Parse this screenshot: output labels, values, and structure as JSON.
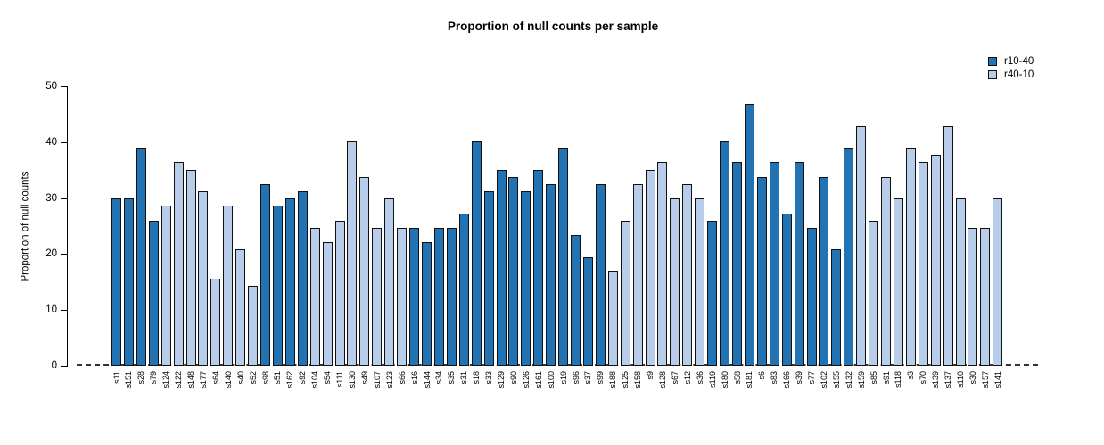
{
  "chart_data": {
    "type": "bar",
    "title": "Proportion of null counts per sample",
    "xlabel": "",
    "ylabel": "Proportion of null counts",
    "ylim": [
      0,
      50
    ],
    "yticks": [
      0,
      10,
      20,
      30,
      40,
      50
    ],
    "grid": false,
    "legend_position": "top-right",
    "zero_baseline_style": "dashed",
    "legend": [
      {
        "label": "r10-40",
        "color": "#2173b3"
      },
      {
        "label": "r40-10",
        "color": "#b8cde9"
      }
    ],
    "series_colors": {
      "r10-40": "#2173b3",
      "r40-10": "#b8cde9"
    },
    "bar_border_color": "#111111",
    "categories": [
      "s11",
      "s151",
      "s28",
      "s79",
      "s124",
      "s122",
      "s148",
      "s177",
      "s64",
      "s140",
      "s40",
      "s52",
      "s98",
      "s51",
      "s162",
      "s92",
      "s104",
      "s54",
      "s111",
      "s130",
      "s49",
      "s107",
      "s123",
      "s66",
      "s16",
      "s144",
      "s34",
      "s35",
      "s31",
      "s18",
      "s33",
      "s129",
      "s90",
      "s126",
      "s161",
      "s100",
      "s19",
      "s96",
      "s37",
      "s99",
      "s188",
      "s125",
      "s158",
      "s9",
      "s128",
      "s67",
      "s12",
      "s36",
      "s119",
      "s180",
      "s58",
      "s181",
      "s6",
      "s83",
      "s166",
      "s39",
      "s77",
      "s102",
      "s155",
      "s132",
      "s159",
      "s85",
      "s91",
      "s118",
      "s3",
      "s70",
      "s139",
      "s137",
      "s110",
      "s30",
      "s157",
      "s141"
    ],
    "values": [
      29.9,
      29.9,
      39.0,
      26.0,
      28.6,
      36.4,
      35.1,
      31.2,
      15.6,
      28.6,
      20.8,
      14.3,
      32.5,
      28.6,
      29.9,
      31.2,
      24.7,
      22.1,
      26.0,
      40.3,
      33.8,
      24.7,
      29.9,
      24.7,
      24.7,
      22.1,
      24.7,
      24.7,
      27.3,
      40.3,
      31.2,
      35.1,
      33.8,
      31.2,
      35.1,
      32.5,
      39.0,
      23.4,
      19.5,
      32.5,
      16.9,
      26.0,
      32.5,
      35.1,
      36.4,
      29.9,
      32.5,
      29.9,
      26.0,
      40.3,
      36.4,
      46.8,
      33.8,
      36.4,
      27.3,
      36.4,
      24.7,
      33.8,
      20.8,
      39.0,
      42.9,
      26.0,
      33.8,
      29.9,
      39.0,
      36.4,
      37.7,
      42.9,
      29.9,
      24.7,
      24.7,
      29.9
    ],
    "groups": [
      "r10-40",
      "r10-40",
      "r10-40",
      "r10-40",
      "r40-10",
      "r40-10",
      "r40-10",
      "r40-10",
      "r40-10",
      "r40-10",
      "r40-10",
      "r40-10",
      "r10-40",
      "r10-40",
      "r10-40",
      "r10-40",
      "r40-10",
      "r40-10",
      "r40-10",
      "r40-10",
      "r40-10",
      "r40-10",
      "r40-10",
      "r40-10",
      "r10-40",
      "r10-40",
      "r10-40",
      "r10-40",
      "r10-40",
      "r10-40",
      "r10-40",
      "r10-40",
      "r10-40",
      "r10-40",
      "r10-40",
      "r10-40",
      "r10-40",
      "r10-40",
      "r10-40",
      "r10-40",
      "r40-10",
      "r40-10",
      "r40-10",
      "r40-10",
      "r40-10",
      "r40-10",
      "r40-10",
      "r40-10",
      "r10-40",
      "r10-40",
      "r10-40",
      "r10-40",
      "r10-40",
      "r10-40",
      "r10-40",
      "r10-40",
      "r10-40",
      "r10-40",
      "r10-40",
      "r10-40",
      "r40-10",
      "r40-10",
      "r40-10",
      "r40-10",
      "r40-10",
      "r40-10",
      "r40-10",
      "r40-10",
      "r40-10",
      "r40-10",
      "r40-10",
      "r40-10"
    ]
  }
}
